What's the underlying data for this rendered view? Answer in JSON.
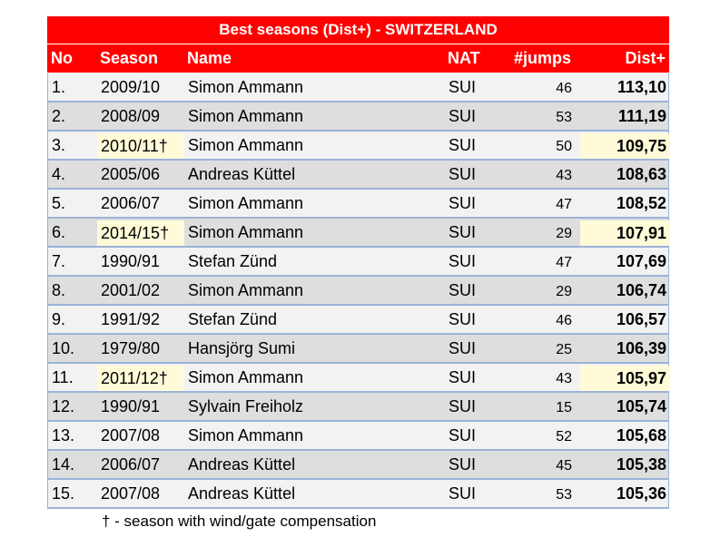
{
  "table": {
    "title": "Best seasons (Dist+) - SWITZERLAND",
    "header": [
      "No",
      "Season",
      "Name",
      "NAT",
      "#jumps",
      "Dist+"
    ],
    "rows": [
      [
        "1.",
        "2009/10",
        "Simon Ammann",
        "SUI",
        46,
        "113,10"
      ],
      [
        "2.",
        "2008/09",
        "Simon Ammann",
        "SUI",
        53,
        "111,19"
      ],
      [
        "3.",
        "2010/11†",
        "Simon Ammann",
        "SUI",
        50,
        "109,75"
      ],
      [
        "4.",
        "2005/06",
        "Andreas Küttel",
        "SUI",
        43,
        "108,63"
      ],
      [
        "5.",
        "2006/07",
        "Simon Ammann",
        "SUI",
        47,
        "108,52"
      ],
      [
        "6.",
        "2014/15†",
        "Simon Ammann",
        "SUI",
        29,
        "107,91"
      ],
      [
        "7.",
        "1990/91",
        "Stefan Zünd",
        "SUI",
        47,
        "107,69"
      ],
      [
        "8.",
        "2001/02",
        "Simon Ammann",
        "SUI",
        29,
        "106,74"
      ],
      [
        "9.",
        "1991/92",
        "Stefan Zünd",
        "SUI",
        46,
        "106,57"
      ],
      [
        "10.",
        "1979/80",
        "Hansjörg Sumi",
        "SUI",
        25,
        "106,39"
      ],
      [
        "11.",
        "2011/12†",
        "Simon Ammann",
        "SUI",
        43,
        "105,97"
      ],
      [
        "12.",
        "1990/91",
        "Sylvain Freiholz",
        "SUI",
        15,
        "105,74"
      ],
      [
        "13.",
        "2007/08",
        "Simon Ammann",
        "SUI",
        52,
        "105,68"
      ],
      [
        "14.",
        "2006/07",
        "Andreas Küttel",
        "SUI",
        45,
        "105,38"
      ],
      [
        "15.",
        "2007/08",
        "Andreas Küttel",
        "SUI",
        53,
        "105,36"
      ]
    ],
    "footnote": "† - season with wind/gate compensation"
  }
}
